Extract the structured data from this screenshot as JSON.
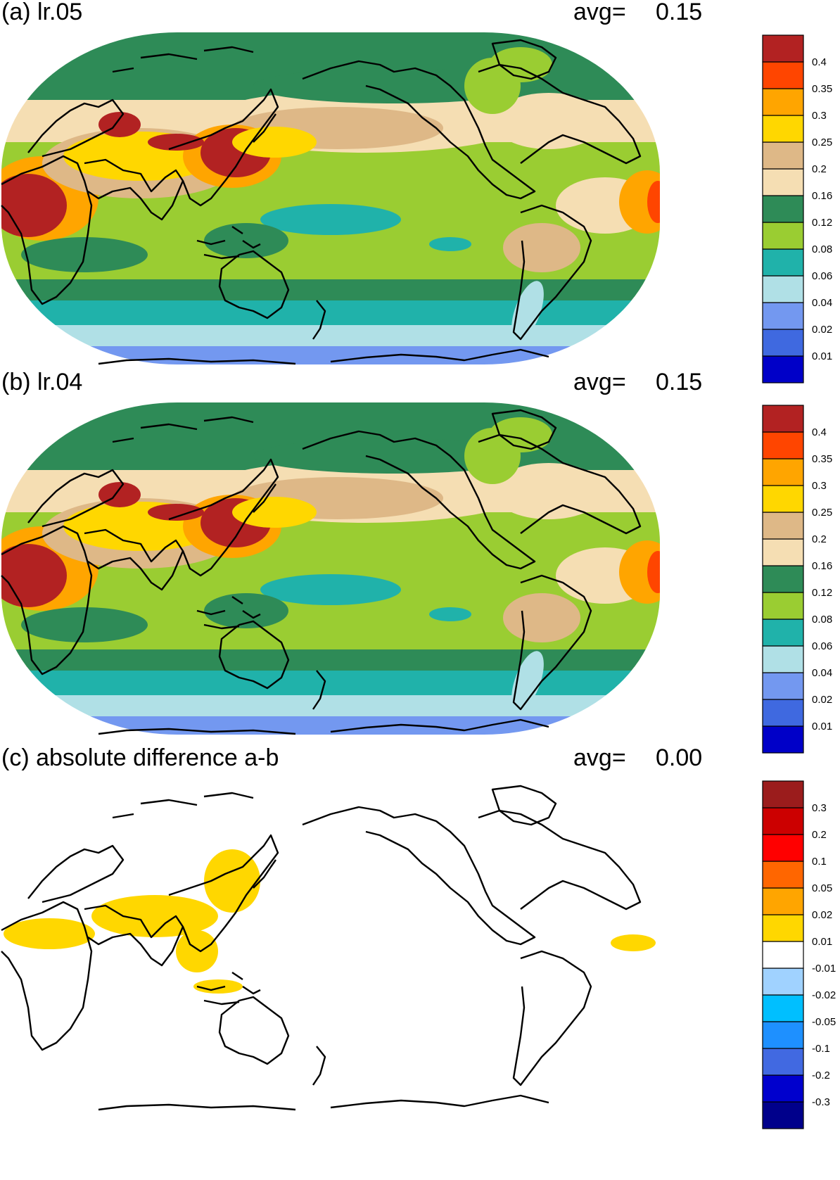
{
  "panels": [
    {
      "title": "(a) lr.05",
      "avg_label": "avg=",
      "avg_value": "0.15",
      "colorbar": {
        "colors": [
          "#0000c8",
          "#3f69e0",
          "#7398f0",
          "#b0e0e6",
          "#20b2aa",
          "#9acd32",
          "#2e8b57",
          "#f5deb3",
          "#deb887",
          "#ffd700",
          "#ffa500",
          "#ff4500",
          "#b22222"
        ],
        "labels": [
          "0.01",
          "0.02",
          "0.04",
          "0.06",
          "0.08",
          "0.12",
          "0.16",
          "0.2",
          "0.25",
          "0.3",
          "0.35",
          "0.4"
        ]
      }
    },
    {
      "title": "(b) lr.04",
      "avg_label": "avg=",
      "avg_value": "0.15",
      "colorbar": {
        "colors": [
          "#0000c8",
          "#3f69e0",
          "#7398f0",
          "#b0e0e6",
          "#20b2aa",
          "#9acd32",
          "#2e8b57",
          "#f5deb3",
          "#deb887",
          "#ffd700",
          "#ffa500",
          "#ff4500",
          "#b22222"
        ],
        "labels": [
          "0.01",
          "0.02",
          "0.04",
          "0.06",
          "0.08",
          "0.12",
          "0.16",
          "0.2",
          "0.25",
          "0.3",
          "0.35",
          "0.4"
        ]
      }
    },
    {
      "title": "(c) absolute difference a-b",
      "avg_label": "avg=",
      "avg_value": "0.00",
      "colorbar": {
        "colors": [
          "#00008b",
          "#0000cd",
          "#4169e1",
          "#1e90ff",
          "#00bfff",
          "#a0d2ff",
          "#ffffff",
          "#ffd700",
          "#ffa500",
          "#ff6600",
          "#ff0000",
          "#cc0000",
          "#9b1c1c"
        ],
        "labels": [
          "-0.3",
          "-0.2",
          "-0.1",
          "-0.05",
          "-0.02",
          "-0.01",
          "0.01",
          "0.02",
          "0.05",
          "0.1",
          "0.2",
          "0.3"
        ]
      }
    }
  ],
  "map_colors": {
    "ocean_main": "#9acd32",
    "mid_lat": "#2e8b57",
    "subtropic": "#f5deb3",
    "tan": "#deb887",
    "yellow": "#ffd700",
    "orange": "#ffa500",
    "red": "#ff4500",
    "darkred": "#b22222",
    "teal": "#20b2aa",
    "light": "#b0e0e6",
    "blue": "#7398f0",
    "diff_yellow": "#ffd700",
    "coast": "#000000"
  }
}
